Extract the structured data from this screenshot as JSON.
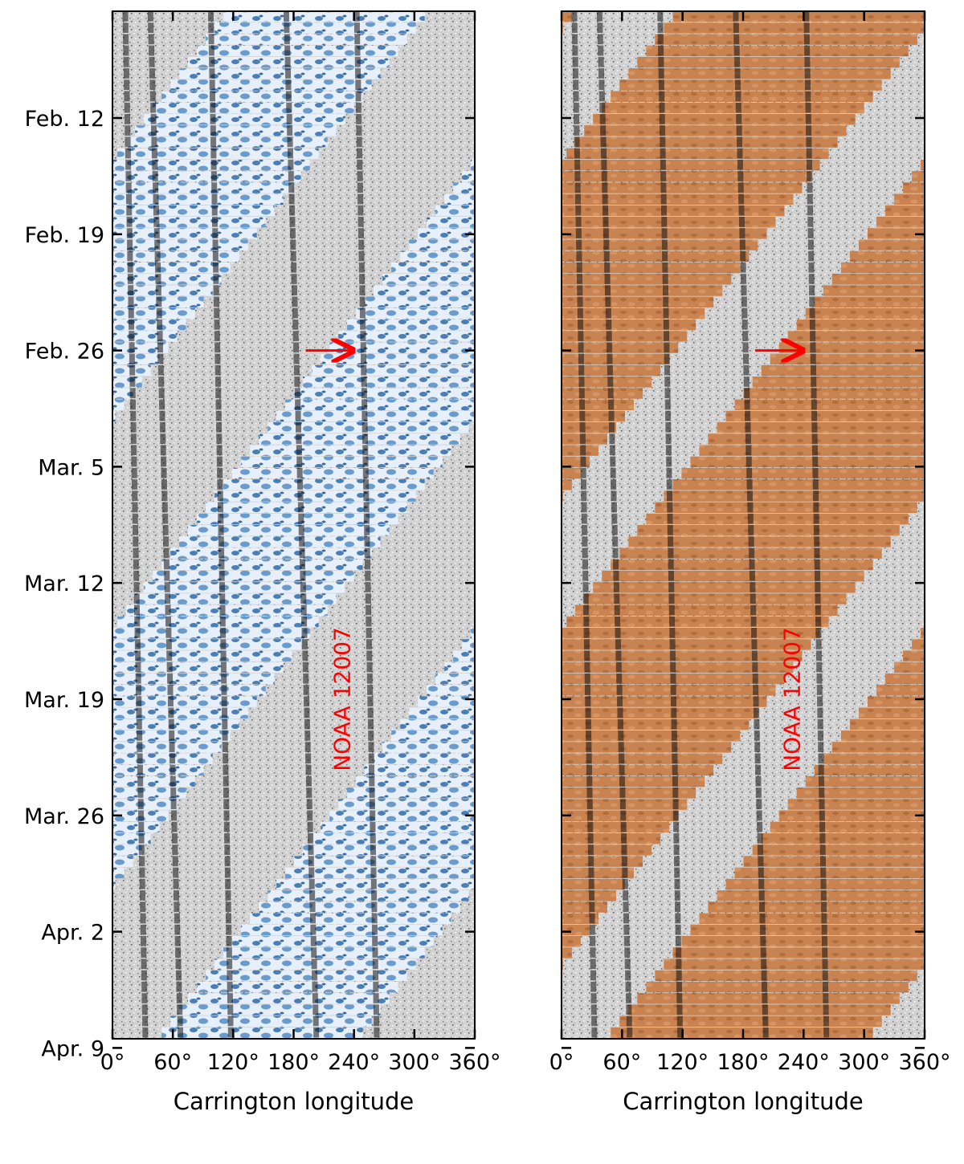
{
  "colors": {
    "magnetogram_background": "#cfcfcf",
    "left_band": "#3a78b5",
    "left_band_light": "#e8f1fa",
    "right_band": "#c98350",
    "annotation": "#ff0000"
  },
  "chart_data": [
    {
      "type": "heatmap",
      "panel": "left",
      "colormap": "blue",
      "xlabel": "Carrington longitude",
      "xlim": [
        0,
        360
      ],
      "x_ticks": [
        0,
        60,
        120,
        180,
        240,
        300,
        360
      ],
      "x_tick_labels": [
        "0°",
        "60°",
        "120°",
        "180°",
        "240°",
        "300°",
        "360°"
      ],
      "y_tick_labels": [
        "Feb. 12",
        "Feb. 19",
        "Feb. 26",
        "Mar. 5",
        "Mar. 12",
        "Mar. 19",
        "Mar. 26",
        "Apr. 2",
        "Apr. 9"
      ],
      "annotation": {
        "text": "NOAA 12007",
        "longitude": 240,
        "date": "Mar. 19"
      },
      "arrow": {
        "date": "Feb. 26",
        "from_longitude": 200,
        "to_longitude": 240
      }
    },
    {
      "type": "heatmap",
      "panel": "right",
      "colormap": "copper",
      "xlabel": "Carrington longitude",
      "xlim": [
        0,
        360
      ],
      "x_ticks": [
        0,
        60,
        120,
        180,
        240,
        300,
        360
      ],
      "x_tick_labels": [
        "0°",
        "60°",
        "120°",
        "180°",
        "240°",
        "300°",
        "360°"
      ],
      "annotation": {
        "text": "NOAA 12007",
        "longitude": 240,
        "date": "Mar. 19"
      },
      "arrow": {
        "date": "Feb. 26",
        "from_longitude": 200,
        "to_longitude": 240
      }
    }
  ]
}
